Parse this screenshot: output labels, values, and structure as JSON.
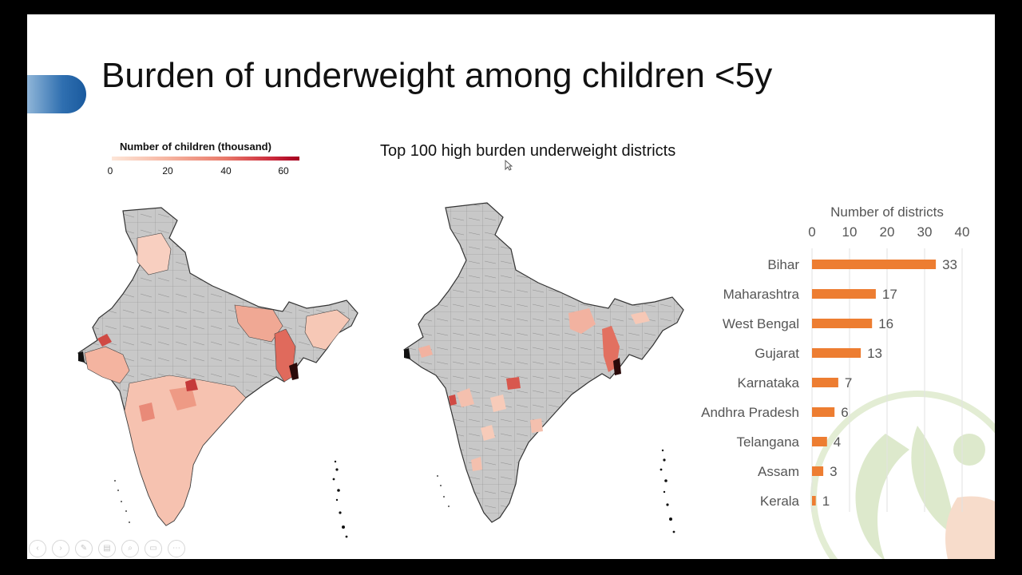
{
  "slide": {
    "title": "Burden of underweight among children <5y",
    "chart_title": "Top 100 high burden underweight districts"
  },
  "legend": {
    "title": "Number of children (thousand)",
    "ticks": [
      "0",
      "20",
      "40",
      "60"
    ],
    "colors": [
      "#fde6d8",
      "#f6b4a0",
      "#e97a6a",
      "#cc2b3c",
      "#a5001f"
    ]
  },
  "maps": {
    "base_color": "#c8c8c8",
    "border_color": "#333333"
  },
  "toolbar": {
    "icons": [
      "previous-icon",
      "next-icon",
      "pen-icon",
      "slides-icon",
      "zoom-icon",
      "monitor-icon",
      "more-icon"
    ],
    "glyphs": [
      "‹",
      "›",
      "✎",
      "▤",
      "⌕",
      "▭",
      "⋯"
    ]
  },
  "chart_data": {
    "type": "bar",
    "orientation": "horizontal",
    "xlabel": "Number of districts",
    "xlim": [
      0,
      40
    ],
    "xticks": [
      0,
      10,
      20,
      30,
      40
    ],
    "categories": [
      "Bihar",
      "Maharashtra",
      "West Bengal",
      "Gujarat",
      "Karnataka",
      "Andhra Pradesh",
      "Telangana",
      "Assam",
      "Kerala"
    ],
    "values": [
      33,
      17,
      16,
      13,
      7,
      6,
      4,
      3,
      1
    ],
    "bar_color": "#ed7d31",
    "grid": true
  }
}
